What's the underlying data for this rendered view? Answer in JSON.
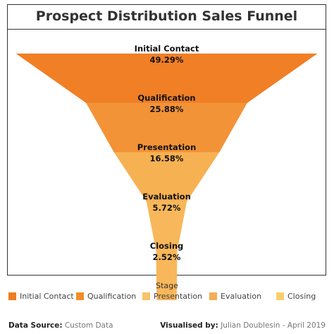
{
  "chart_data": {
    "type": "funnel",
    "title": "Prospect Distribution Sales Funnel",
    "categories": [
      "Initial Contact",
      "Qualification",
      "Presentation",
      "Evaluation",
      "Closing"
    ],
    "values": [
      49.29,
      25.88,
      16.58,
      5.72,
      2.52
    ],
    "value_labels": [
      "49.29%",
      "25.88%",
      "16.58%",
      "5.72%",
      "2.52%"
    ],
    "colors": [
      "#f07f26",
      "#f39337",
      "#f6b153",
      "#f8b75a",
      "#f8b75a"
    ],
    "legend": {
      "title": "Stage",
      "placement": "bottom",
      "items": [
        {
          "label": "Initial Contact",
          "color": "#ee7c21"
        },
        {
          "label": "Qualification",
          "color": "#f28e2b"
        },
        {
          "label": "Presentation",
          "color": "#f8c36a"
        },
        {
          "label": "Evaluation",
          "color": "#f6ad55"
        },
        {
          "label": "Closing",
          "color": "#f8d06b"
        }
      ]
    }
  },
  "footer": {
    "source_label": "Data Source:",
    "source_value": "Custom Data",
    "credit_label": "Visualised by:",
    "credit_value": "Julian Doublesin - April 2019"
  }
}
